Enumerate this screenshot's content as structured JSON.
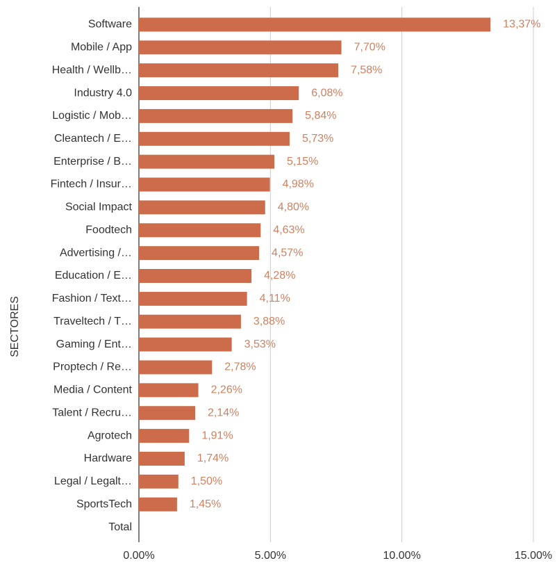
{
  "chart_data": {
    "type": "bar",
    "orientation": "horizontal",
    "y_axis_label": "SECTORES",
    "categories": [
      "Software",
      "Mobile / App",
      "Health / Wellb…",
      "Industry 4.0",
      "Logistic / Mob…",
      "Cleantech / E…",
      "Enterprise / B…",
      "Fintech / Insur…",
      "Social Impact",
      "Foodtech",
      "Advertising /…",
      "Education / E…",
      "Fashion / Text…",
      "Traveltech / T…",
      "Gaming / Ent…",
      "Proptech / Re…",
      "Media / Content",
      "Talent / Recru…",
      "Agrotech",
      "Hardware",
      "Legal / Legalt…",
      "SportsTech",
      "Total"
    ],
    "values": [
      13.37,
      7.7,
      7.58,
      6.08,
      5.84,
      5.73,
      5.15,
      4.98,
      4.8,
      4.63,
      4.57,
      4.28,
      4.11,
      3.88,
      3.53,
      2.78,
      2.26,
      2.14,
      1.91,
      1.74,
      1.5,
      1.45,
      null
    ],
    "value_labels": [
      "13,37%",
      "7,70%",
      "7,58%",
      "6,08%",
      "5,84%",
      "5,73%",
      "5,15%",
      "4,98%",
      "4,80%",
      "4,63%",
      "4,57%",
      "4,28%",
      "4,11%",
      "3,88%",
      "3,53%",
      "2,78%",
      "2,26%",
      "2,14%",
      "1,91%",
      "1,74%",
      "1,50%",
      "1,45%",
      null
    ],
    "color": "#cd6c4b",
    "xlim": [
      0,
      15
    ],
    "xticks": [
      {
        "value": 0,
        "label": "0.00%"
      },
      {
        "value": 5,
        "label": "5.00%"
      },
      {
        "value": 10,
        "label": "10.00%"
      },
      {
        "value": 15,
        "label": "15.00%"
      }
    ],
    "grid": true
  }
}
